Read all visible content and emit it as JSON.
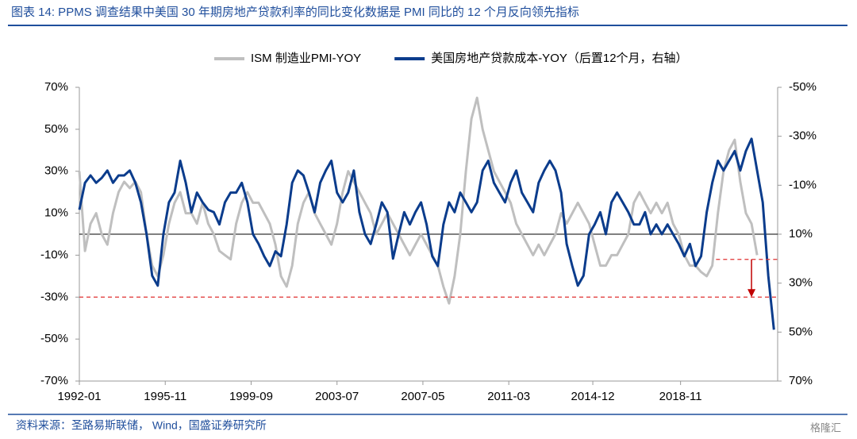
{
  "chart_data": {
    "type": "line",
    "title": "图表 14:  PPMS 调查结果中美国 30 年期房地产贷款利率的同比变化数据是 PMI 同比的 12 个月反向领先指标",
    "source": "资料来源：圣路易斯联储， Wind，国盛证券研究所",
    "watermark": "格隆汇",
    "x": [
      "1992-01",
      "1992-04",
      "1992-07",
      "1992-10",
      "1993-01",
      "1993-04",
      "1993-07",
      "1993-10",
      "1994-01",
      "1994-04",
      "1994-07",
      "1994-10",
      "1995-01",
      "1995-04",
      "1995-07",
      "1995-10",
      "1996-01",
      "1996-04",
      "1996-07",
      "1996-10",
      "1997-01",
      "1997-04",
      "1997-07",
      "1997-10",
      "1998-01",
      "1998-04",
      "1998-07",
      "1998-10",
      "1999-01",
      "1999-04",
      "1999-07",
      "1999-10",
      "2000-01",
      "2000-04",
      "2000-07",
      "2000-10",
      "2001-01",
      "2001-04",
      "2001-07",
      "2001-10",
      "2002-01",
      "2002-04",
      "2002-07",
      "2002-10",
      "2003-01",
      "2003-04",
      "2003-07",
      "2003-10",
      "2004-01",
      "2004-04",
      "2004-07",
      "2004-10",
      "2005-01",
      "2005-04",
      "2005-07",
      "2005-10",
      "2006-01",
      "2006-04",
      "2006-07",
      "2006-10",
      "2007-01",
      "2007-04",
      "2007-07",
      "2007-10",
      "2008-01",
      "2008-04",
      "2008-07",
      "2008-10",
      "2009-01",
      "2009-04",
      "2009-07",
      "2009-10",
      "2010-01",
      "2010-04",
      "2010-07",
      "2010-10",
      "2011-01",
      "2011-04",
      "2011-07",
      "2011-10",
      "2012-01",
      "2012-04",
      "2012-07",
      "2012-10",
      "2013-01",
      "2013-04",
      "2013-07",
      "2013-10",
      "2014-01",
      "2014-04",
      "2014-07",
      "2014-10",
      "2015-01",
      "2015-04",
      "2015-07",
      "2015-10",
      "2016-01",
      "2016-04",
      "2016-07",
      "2016-10",
      "2017-01",
      "2017-04",
      "2017-07",
      "2017-10",
      "2018-01",
      "2018-04",
      "2018-07",
      "2018-10",
      "2019-01",
      "2019-04",
      "2019-07",
      "2019-10",
      "2020-01",
      "2020-04",
      "2020-07",
      "2020-10",
      "2021-01",
      "2021-04",
      "2021-07",
      "2021-10",
      "2022-01",
      "2022-04",
      "2022-07",
      "2022-10",
      "2023-01"
    ],
    "series": [
      {
        "name": "ISM 制造业PMI-YOY",
        "color": "#bfbfbf",
        "values": [
          30,
          -8,
          5,
          10,
          0,
          -5,
          10,
          20,
          25,
          22,
          25,
          20,
          0,
          -15,
          -20,
          -10,
          5,
          15,
          20,
          10,
          10,
          5,
          15,
          5,
          0,
          -8,
          -10,
          -12,
          5,
          15,
          20,
          15,
          15,
          10,
          5,
          -5,
          -20,
          -25,
          -15,
          5,
          15,
          20,
          10,
          5,
          0,
          -5,
          5,
          20,
          30,
          25,
          20,
          15,
          10,
          0,
          5,
          10,
          5,
          0,
          -5,
          -10,
          -5,
          0,
          -5,
          -10,
          -15,
          -25,
          -33,
          -20,
          0,
          30,
          55,
          65,
          50,
          40,
          30,
          25,
          20,
          15,
          5,
          0,
          -5,
          -10,
          -5,
          -10,
          -5,
          0,
          10,
          5,
          10,
          15,
          10,
          5,
          -5,
          -15,
          -15,
          -10,
          -10,
          -5,
          0,
          15,
          20,
          15,
          10,
          15,
          10,
          15,
          5,
          0,
          -10,
          -15,
          -15,
          -18,
          -20,
          -15,
          10,
          30,
          40,
          45,
          25,
          10,
          5,
          -10,
          null,
          null,
          null
        ]
      },
      {
        "name": "美国房地产贷款成本-YOY（后置12个月，右轴）",
        "color": "#0b3c8c",
        "axis": "y2",
        "values": [
          0,
          -11,
          -14,
          -11,
          -13,
          -16,
          -11,
          -14,
          -14,
          -16,
          -11,
          -3,
          10,
          27,
          31,
          10,
          -3,
          -7,
          -20,
          -11,
          1,
          -7,
          -3,
          0,
          1,
          6,
          -3,
          -7,
          -7,
          -11,
          -3,
          10,
          14,
          19,
          23,
          17,
          19,
          6,
          -11,
          -16,
          -14,
          -7,
          1,
          -11,
          -16,
          -20,
          -7,
          -3,
          -7,
          -16,
          1,
          10,
          14,
          6,
          -3,
          1,
          20,
          10,
          1,
          6,
          1,
          -3,
          6,
          19,
          23,
          6,
          -3,
          1,
          -7,
          -3,
          1,
          -3,
          -16,
          -20,
          -11,
          -7,
          -3,
          -11,
          -16,
          -7,
          -3,
          1,
          -11,
          -16,
          -20,
          -16,
          -7,
          14,
          23,
          31,
          27,
          10,
          6,
          1,
          10,
          -3,
          -7,
          -3,
          1,
          6,
          6,
          1,
          10,
          6,
          10,
          6,
          10,
          14,
          19,
          14,
          23,
          19,
          1,
          -11,
          -20,
          -16,
          -20,
          -24,
          -16,
          -24,
          -29,
          -16,
          -3,
          27,
          49
        ]
      }
    ],
    "xlim": [
      "1992-01",
      "2023-03"
    ],
    "xticks": [
      "1992-01",
      "1995-11",
      "1999-09",
      "2003-07",
      "2007-05",
      "2011-03",
      "2014-12",
      "2018-11"
    ],
    "ylim": [
      -70,
      70
    ],
    "yticks": [
      {
        "value": 70,
        "label": "70%"
      },
      {
        "value": 50,
        "label": "50%"
      },
      {
        "value": 30,
        "label": "30%"
      },
      {
        "value": 10,
        "label": "10%"
      },
      {
        "value": -10,
        "label": "-10%"
      },
      {
        "value": -30,
        "label": "-30%"
      },
      {
        "value": -50,
        "label": "-50%"
      },
      {
        "value": -70,
        "label": "-70%"
      }
    ],
    "y2lim": [
      -50,
      70
    ],
    "y2_inverted": true,
    "y2ticks": [
      {
        "value": -50,
        "label": "-50%"
      },
      {
        "value": -30,
        "label": "-30%"
      },
      {
        "value": -10,
        "label": "-10%"
      },
      {
        "value": 10,
        "label": "10%"
      },
      {
        "value": 30,
        "label": "30%"
      },
      {
        "value": 50,
        "label": "50%"
      },
      {
        "value": 70,
        "label": "70%"
      }
    ],
    "zero_line": 0,
    "ref_lines": [
      {
        "value": -30,
        "x": [
          "1992-01",
          "2023-03"
        ],
        "color": "#e03030"
      },
      {
        "value": -12,
        "x": [
          "2020-06",
          "2023-03"
        ],
        "color": "#e03030"
      }
    ],
    "arrow": {
      "x": "2022-01",
      "y": [
        -12,
        -30
      ],
      "color": "#c00000"
    },
    "legend": "top"
  }
}
